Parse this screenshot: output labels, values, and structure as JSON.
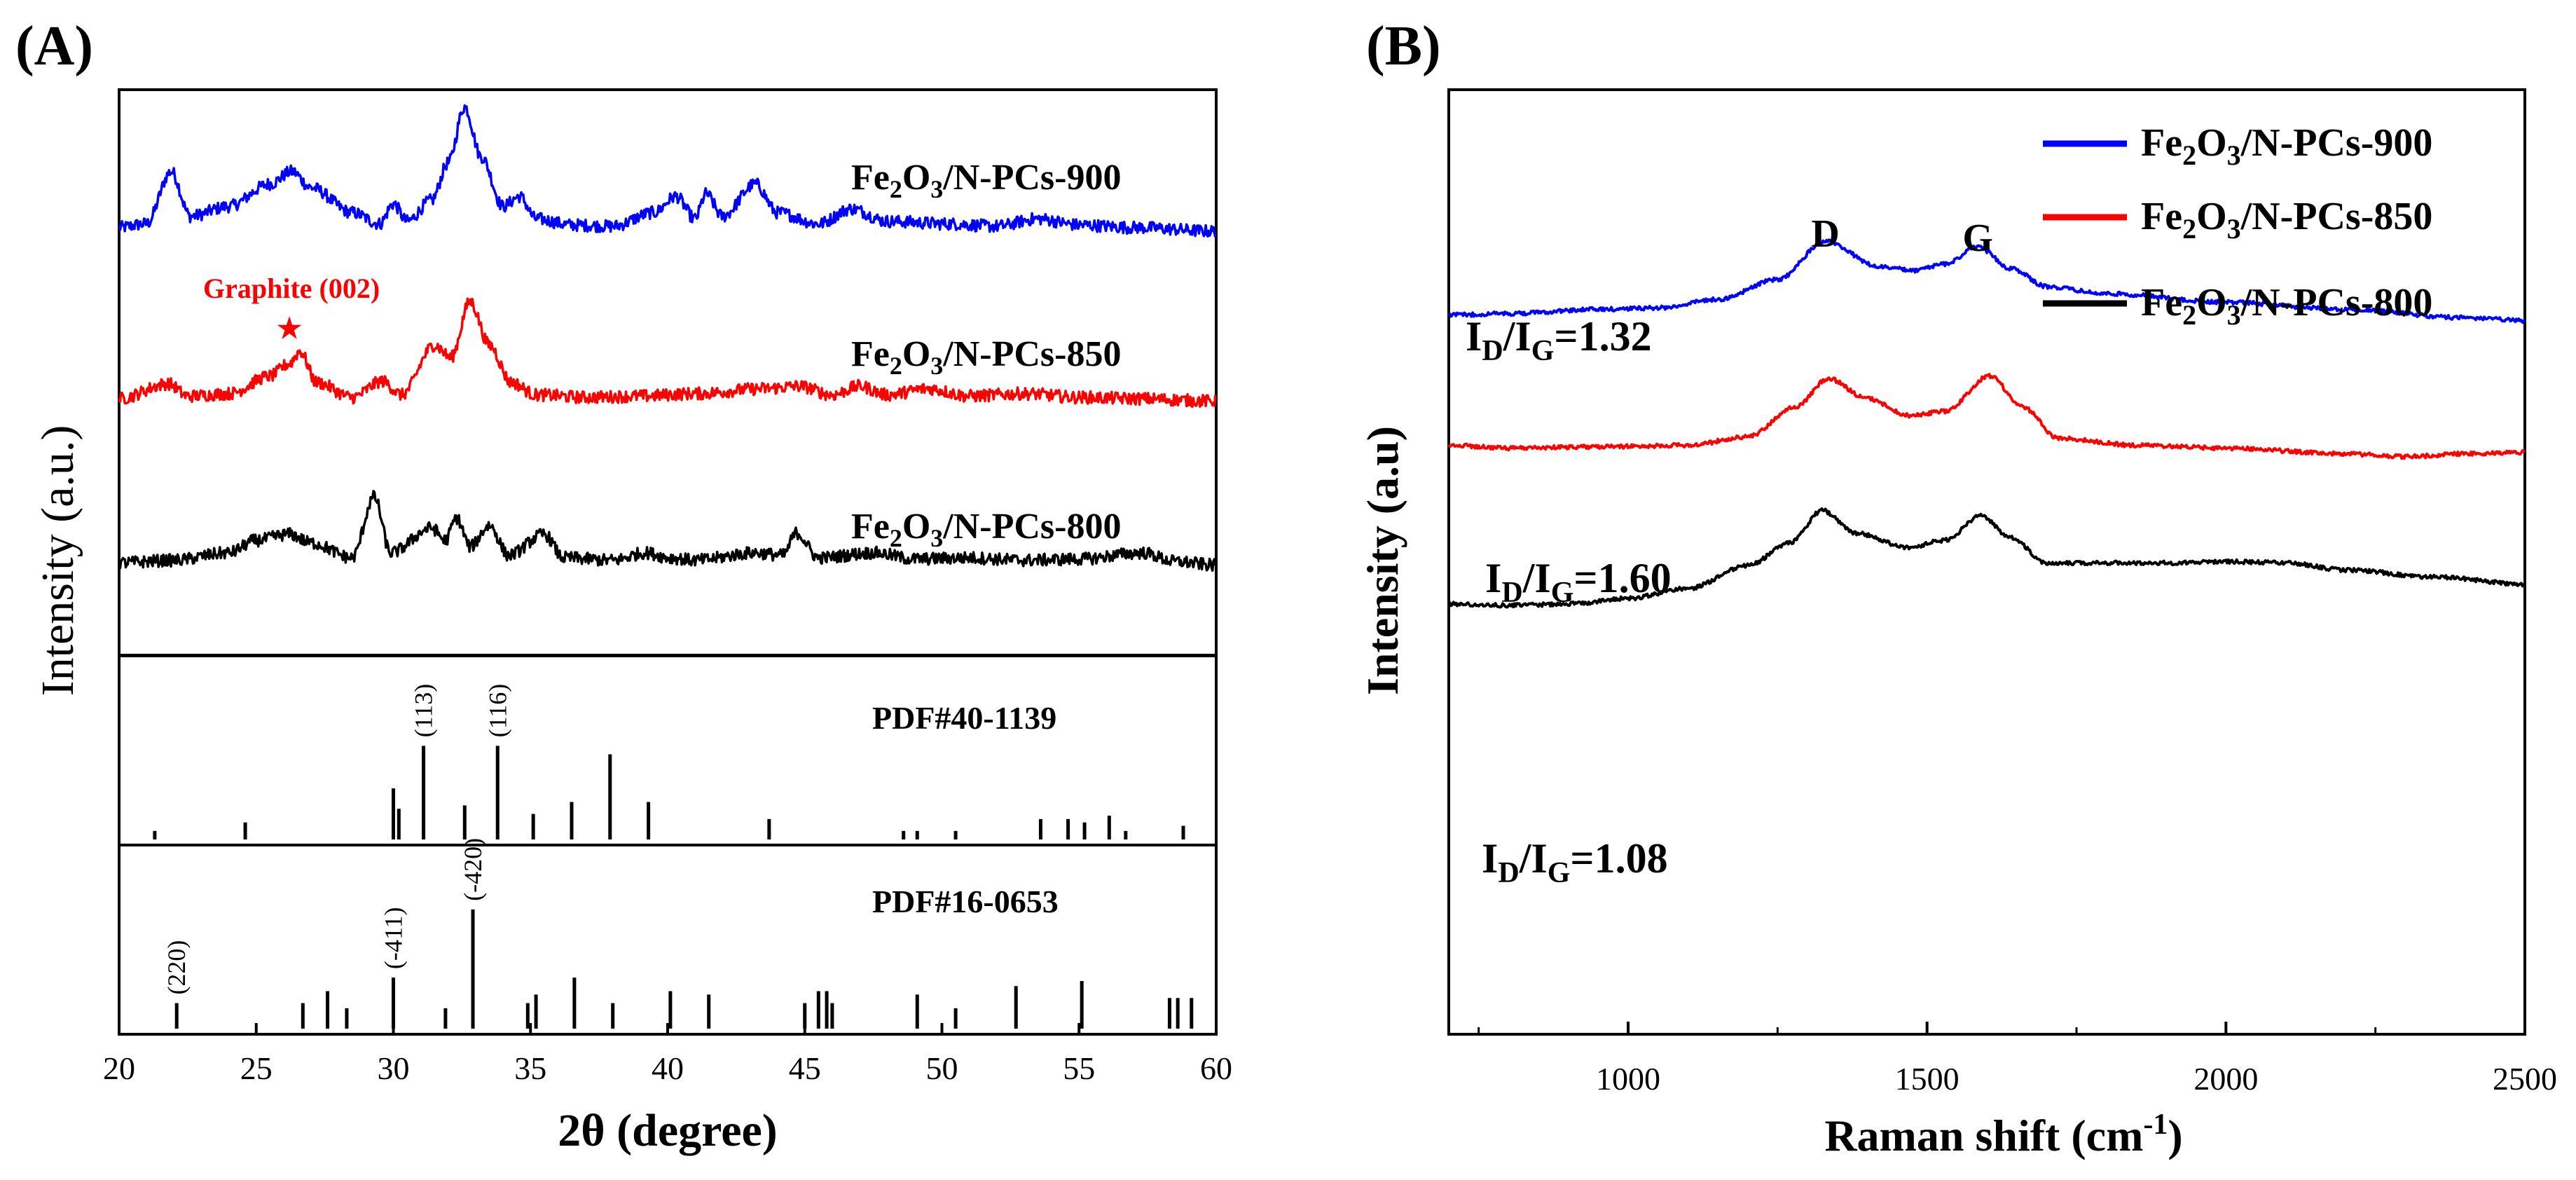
{
  "panels": {
    "a_label": "(A)",
    "b_label": "(B)"
  },
  "colors": {
    "blue": "#0000ff",
    "red": "#ff0000",
    "black": "#000000"
  },
  "chart_data": [
    {
      "id": "xrd",
      "type": "line",
      "title": "(A)",
      "xlabel": "2θ (degree)",
      "ylabel": "Intensity (a.u.)",
      "xlim": [
        20,
        60
      ],
      "xticks": [
        "20",
        "25",
        "30",
        "35",
        "40",
        "45",
        "50",
        "55",
        "60"
      ],
      "annotation": {
        "text": "Graphite (002)",
        "x": 26.3,
        "marker": "★"
      },
      "series": [
        {
          "name": "Fe2O3/N-PCs-900",
          "label_base": "Fe",
          "label_sub1": "2",
          "label_mid": "O",
          "label_sub2": "3",
          "label_tail": "/N-PCs-900",
          "color": "#0000ff",
          "baseline": 0.75,
          "points": [
            [
              20,
              0.03
            ],
            [
              21,
              0.06
            ],
            [
              21.9,
              0.48
            ],
            [
              22.6,
              0.12
            ],
            [
              24,
              0.2
            ],
            [
              25.5,
              0.38
            ],
            [
              26.3,
              0.48
            ],
            [
              27,
              0.35
            ],
            [
              28.5,
              0.15
            ],
            [
              29.5,
              0.06
            ],
            [
              30,
              0.22
            ],
            [
              30.5,
              0.08
            ],
            [
              31.4,
              0.25
            ],
            [
              32,
              0.55
            ],
            [
              32.6,
              1.0
            ],
            [
              33.2,
              0.6
            ],
            [
              34,
              0.2
            ],
            [
              34.6,
              0.28
            ],
            [
              35.2,
              0.1
            ],
            [
              36.5,
              0.05
            ],
            [
              38,
              0.04
            ],
            [
              39.5,
              0.15
            ],
            [
              40.3,
              0.28
            ],
            [
              41,
              0.1
            ],
            [
              41.4,
              0.3
            ],
            [
              42,
              0.12
            ],
            [
              43.2,
              0.38
            ],
            [
              44,
              0.15
            ],
            [
              45.5,
              0.06
            ],
            [
              46.7,
              0.18
            ],
            [
              48,
              0.08
            ],
            [
              50.2,
              0.06
            ],
            [
              52,
              0.04
            ],
            [
              53.5,
              0.1
            ],
            [
              55,
              0.05
            ],
            [
              57,
              0.03
            ],
            [
              60,
              0.0
            ]
          ]
        },
        {
          "name": "Fe2O3/N-PCs-850",
          "label_base": "Fe",
          "label_sub1": "2",
          "label_mid": "O",
          "label_sub2": "3",
          "label_tail": "/N-PCs-850",
          "color": "#ff0000",
          "baseline": 0.45,
          "points": [
            [
              20,
              0.02
            ],
            [
              21.8,
              0.14
            ],
            [
              22.5,
              0.04
            ],
            [
              24,
              0.06
            ],
            [
              25.5,
              0.2
            ],
            [
              26.2,
              0.3
            ],
            [
              26.6,
              0.4
            ],
            [
              27.2,
              0.15
            ],
            [
              28.5,
              0.03
            ],
            [
              29.6,
              0.16
            ],
            [
              30.3,
              0.05
            ],
            [
              31.5,
              0.45
            ],
            [
              32.1,
              0.35
            ],
            [
              32.8,
              0.8
            ],
            [
              33.5,
              0.45
            ],
            [
              34.3,
              0.15
            ],
            [
              35.2,
              0.05
            ],
            [
              37,
              0.03
            ],
            [
              39,
              0.04
            ],
            [
              41,
              0.06
            ],
            [
              43.5,
              0.1
            ],
            [
              44.8,
              0.12
            ],
            [
              46,
              0.05
            ],
            [
              47,
              0.12
            ],
            [
              48,
              0.05
            ],
            [
              49.5,
              0.1
            ],
            [
              51,
              0.04
            ],
            [
              53,
              0.06
            ],
            [
              55,
              0.03
            ],
            [
              57,
              0.02
            ],
            [
              60,
              0.0
            ]
          ]
        },
        {
          "name": "Fe2O3/N-PCs-800",
          "label_base": "Fe",
          "label_sub1": "2",
          "label_mid": "O",
          "label_sub2": "3",
          "label_tail": "/N-PCs-800",
          "color": "#000000",
          "baseline": 0.16,
          "points": [
            [
              20,
              0.02
            ],
            [
              22,
              0.04
            ],
            [
              24,
              0.1
            ],
            [
              25,
              0.2
            ],
            [
              26.2,
              0.25
            ],
            [
              27,
              0.18
            ],
            [
              28.5,
              0.06
            ],
            [
              29.3,
              0.55
            ],
            [
              29.9,
              0.1
            ],
            [
              31.4,
              0.3
            ],
            [
              31.9,
              0.2
            ],
            [
              32.3,
              0.38
            ],
            [
              32.8,
              0.15
            ],
            [
              33.5,
              0.32
            ],
            [
              34.2,
              0.08
            ],
            [
              35.5,
              0.25
            ],
            [
              36.2,
              0.06
            ],
            [
              38,
              0.04
            ],
            [
              39.2,
              0.1
            ],
            [
              40.1,
              0.06
            ],
            [
              41,
              0.04
            ],
            [
              43.2,
              0.1
            ],
            [
              44.2,
              0.08
            ],
            [
              44.7,
              0.26
            ],
            [
              45.5,
              0.06
            ],
            [
              47.5,
              0.1
            ],
            [
              49,
              0.05
            ],
            [
              51,
              0.06
            ],
            [
              53,
              0.04
            ],
            [
              55,
              0.05
            ],
            [
              57.3,
              0.1
            ],
            [
              58.5,
              0.03
            ],
            [
              60,
              0.0
            ]
          ]
        }
      ],
      "reference_patterns": [
        {
          "name": "PDF#40-1139",
          "peaks": [
            [
              21.3,
              0.05
            ],
            [
              24.6,
              0.1
            ],
            [
              30.0,
              0.3
            ],
            [
              30.2,
              0.18
            ],
            [
              31.1,
              0.55
            ],
            [
              32.6,
              0.2
            ],
            [
              33.8,
              0.55
            ],
            [
              35.1,
              0.15
            ],
            [
              36.5,
              0.22
            ],
            [
              37.9,
              0.5
            ],
            [
              39.3,
              0.22
            ],
            [
              43.7,
              0.12
            ],
            [
              48.6,
              0.05
            ],
            [
              49.1,
              0.05
            ],
            [
              50.5,
              0.05
            ],
            [
              53.6,
              0.12
            ],
            [
              54.6,
              0.12
            ],
            [
              55.2,
              0.1
            ],
            [
              56.1,
              0.14
            ],
            [
              56.7,
              0.05
            ],
            [
              58.8,
              0.08
            ]
          ],
          "labels": [
            {
              "text": "(113)",
              "x": 31.1
            },
            {
              "text": "(116)",
              "x": 33.8
            }
          ]
        },
        {
          "name": "PDF#16-0653",
          "peaks": [
            [
              22.1,
              0.15
            ],
            [
              26.7,
              0.15
            ],
            [
              27.6,
              0.22
            ],
            [
              28.3,
              0.12
            ],
            [
              30.0,
              0.3
            ],
            [
              31.9,
              0.12
            ],
            [
              32.9,
              0.7
            ],
            [
              34.9,
              0.15
            ],
            [
              35.2,
              0.2
            ],
            [
              36.6,
              0.3
            ],
            [
              38.0,
              0.15
            ],
            [
              40.1,
              0.22
            ],
            [
              41.5,
              0.2
            ],
            [
              45.0,
              0.15
            ],
            [
              45.5,
              0.22
            ],
            [
              45.8,
              0.22
            ],
            [
              46.0,
              0.15
            ],
            [
              49.1,
              0.2
            ],
            [
              50.5,
              0.12
            ],
            [
              52.7,
              0.25
            ],
            [
              55.1,
              0.28
            ],
            [
              58.3,
              0.18
            ],
            [
              58.6,
              0.18
            ],
            [
              59.1,
              0.18
            ]
          ],
          "labels": [
            {
              "text": "(220)",
              "x": 22.1
            },
            {
              "text": "(-411)",
              "x": 30.0
            },
            {
              "text": "(-420)",
              "x": 32.9
            }
          ]
        }
      ]
    },
    {
      "id": "raman",
      "type": "line",
      "title": "(B)",
      "xlabel": "Raman shift (cm",
      "xlabel_sup": "-1",
      "xlabel_tail": ")",
      "ylabel": "Intensity (a.u)",
      "xlim": [
        700,
        2500
      ],
      "xticks": [
        "1000",
        "1500",
        "2000",
        "2500"
      ],
      "peaks": [
        {
          "text": "D",
          "x": 1330
        },
        {
          "text": "G",
          "x": 1585
        }
      ],
      "series": [
        {
          "name": "Fe2O3/N-PCs-900",
          "legend_base": "Fe",
          "legend_sub1": "2",
          "legend_mid": "O",
          "legend_sub2": "3",
          "legend_tail": "/N-PCs-900",
          "ratio_label": "I",
          "ratio_sub1": "D",
          "ratio_mid": "/I",
          "ratio_sub2": "G",
          "ratio_value": "=1.32",
          "color": "#0000ff",
          "points": [
            [
              700,
              0.795
            ],
            [
              800,
              0.79
            ],
            [
              950,
              0.775
            ],
            [
              1050,
              0.77
            ],
            [
              1150,
              0.74
            ],
            [
              1250,
              0.67
            ],
            [
              1330,
              0.535
            ],
            [
              1420,
              0.625
            ],
            [
              1480,
              0.638
            ],
            [
              1530,
              0.615
            ],
            [
              1585,
              0.555
            ],
            [
              1640,
              0.63
            ],
            [
              1700,
              0.695
            ],
            [
              1800,
              0.72
            ],
            [
              2000,
              0.75
            ],
            [
              2200,
              0.775
            ],
            [
              2400,
              0.805
            ],
            [
              2500,
              0.815
            ]
          ]
        },
        {
          "name": "Fe2O3/N-PCs-850",
          "legend_base": "Fe",
          "legend_sub1": "2",
          "legend_mid": "O",
          "legend_sub2": "3",
          "legend_tail": "/N-PCs-850",
          "ratio_label": "I",
          "ratio_sub1": "D",
          "ratio_mid": "/I",
          "ratio_sub2": "G",
          "ratio_value": "=1.60",
          "color": "#ff0000",
          "points": [
            [
              700,
              1.255
            ],
            [
              800,
              1.265
            ],
            [
              950,
              1.26
            ],
            [
              1100,
              1.255
            ],
            [
              1200,
              1.225
            ],
            [
              1280,
              1.12
            ],
            [
              1335,
              1.02
            ],
            [
              1400,
              1.09
            ],
            [
              1470,
              1.15
            ],
            [
              1530,
              1.135
            ],
            [
              1605,
              1.01
            ],
            [
              1660,
              1.12
            ],
            [
              1720,
              1.23
            ],
            [
              1850,
              1.255
            ],
            [
              2000,
              1.265
            ],
            [
              2200,
              1.285
            ],
            [
              2300,
              1.295
            ],
            [
              2400,
              1.285
            ],
            [
              2500,
              1.28
            ]
          ]
        },
        {
          "name": "Fe2O3/N-PCs-800",
          "legend_base": "Fe",
          "legend_sub1": "2",
          "legend_mid": "O",
          "legend_sub2": "3",
          "legend_tail": "/N-PCs-800",
          "ratio_label": "I",
          "ratio_sub1": "D",
          "ratio_mid": "/I",
          "ratio_sub2": "G",
          "ratio_value": "=1.08",
          "color": "#000000",
          "points": [
            [
              700,
              1.815
            ],
            [
              800,
              1.82
            ],
            [
              900,
              1.815
            ],
            [
              1000,
              1.795
            ],
            [
              1100,
              1.76
            ],
            [
              1200,
              1.68
            ],
            [
              1270,
              1.6
            ],
            [
              1325,
              1.485
            ],
            [
              1380,
              1.565
            ],
            [
              1470,
              1.615
            ],
            [
              1530,
              1.59
            ],
            [
              1590,
              1.505
            ],
            [
              1640,
              1.58
            ],
            [
              1700,
              1.67
            ],
            [
              1800,
              1.67
            ],
            [
              1900,
              1.67
            ],
            [
              2000,
              1.665
            ],
            [
              2100,
              1.67
            ],
            [
              2200,
              1.695
            ],
            [
              2350,
              1.72
            ],
            [
              2500,
              1.745
            ]
          ]
        }
      ]
    }
  ]
}
